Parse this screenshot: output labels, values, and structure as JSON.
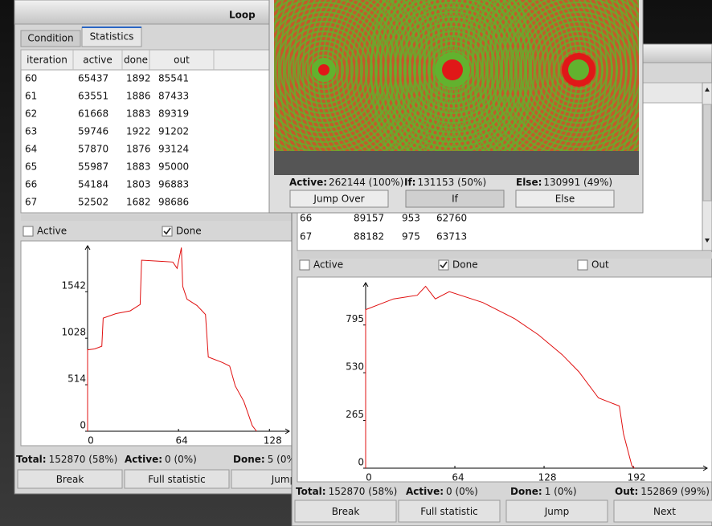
{
  "left_window": {
    "title": "Loop",
    "tabs": [
      "Condition",
      "Statistics"
    ],
    "table": {
      "header": [
        "iteration",
        "active",
        "done",
        "out"
      ],
      "rows": [
        [
          "60",
          "65437",
          "1892",
          "85541"
        ],
        [
          "61",
          "63551",
          "1886",
          "87433"
        ],
        [
          "62",
          "61668",
          "1883",
          "89319"
        ],
        [
          "63",
          "59746",
          "1922",
          "91202"
        ],
        [
          "64",
          "57870",
          "1876",
          "93124"
        ],
        [
          "65",
          "55987",
          "1883",
          "95000"
        ],
        [
          "66",
          "54184",
          "1803",
          "96883"
        ],
        [
          "67",
          "52502",
          "1682",
          "98686"
        ]
      ]
    },
    "checkboxes": [
      {
        "label": "Active",
        "checked": false
      },
      {
        "label": "Done",
        "checked": true
      }
    ],
    "chart": {
      "type": "line",
      "color": "#e01010",
      "x": [
        0,
        0,
        5,
        10,
        11,
        20,
        30,
        37,
        38,
        50,
        60,
        63,
        66,
        67,
        70,
        77,
        83,
        85,
        95,
        100,
        104,
        110,
        116,
        119
      ],
      "values": [
        0,
        900,
        910,
        940,
        1250,
        1300,
        1330,
        1400,
        1890,
        1880,
        1870,
        1800,
        2030,
        1600,
        1460,
        1390,
        1290,
        820,
        760,
        720,
        500,
        330,
        60,
        0
      ],
      "xlim": [
        0,
        142
      ],
      "ylim": [
        0,
        2050
      ],
      "xticks": [
        0,
        64,
        128
      ],
      "yticks": [
        0,
        514,
        1028,
        1542
      ]
    },
    "status": [
      {
        "label": "Total:",
        "value": "152870 (58%)"
      },
      {
        "label": "Active:",
        "value": "0 (0%)"
      },
      {
        "label": "Done:",
        "value": "5 (0%)"
      }
    ],
    "buttons": [
      {
        "label": "Break",
        "enabled": true
      },
      {
        "label": "Full statistic",
        "enabled": false
      },
      {
        "label": "Jump",
        "enabled": false
      }
    ]
  },
  "right_window": {
    "table": {
      "rows": [
        [
          "66",
          "89157",
          "953",
          "62760"
        ],
        [
          "67",
          "88182",
          "975",
          "63713"
        ]
      ]
    },
    "checkboxes": [
      {
        "label": "Active",
        "checked": false
      },
      {
        "label": "Done",
        "checked": true
      },
      {
        "label": "Out",
        "checked": false
      }
    ],
    "chart": {
      "type": "line",
      "color": "#e01010",
      "x": [
        0,
        0,
        20,
        37,
        43,
        50,
        60,
        84,
        107,
        124,
        141,
        153,
        167,
        182,
        185,
        191,
        193
      ],
      "values": [
        0,
        880,
        940,
        960,
        1010,
        940,
        980,
        920,
        830,
        740,
        630,
        535,
        390,
        345,
        190,
        13,
        0
      ],
      "xlim": [
        0,
        245
      ],
      "ylim": [
        0,
        1030
      ],
      "xticks": [
        0,
        64,
        128,
        192
      ],
      "yticks": [
        0,
        265,
        530,
        795
      ]
    },
    "status": [
      {
        "label": "Total:",
        "value": "152870 (58%)"
      },
      {
        "label": "Active:",
        "value": "0 (0%)"
      },
      {
        "label": "Done:",
        "value": "1 (0%)"
      },
      {
        "label": "Out:",
        "value": "152869 (99%)"
      }
    ],
    "buttons": [
      {
        "label": "Break",
        "enabled": true
      },
      {
        "label": "Full statistic",
        "enabled": false
      },
      {
        "label": "Jump",
        "enabled": false
      },
      {
        "label": "Next",
        "enabled": false
      }
    ]
  },
  "popup": {
    "stats": [
      {
        "label": "Active:",
        "value": "262144 (100%)"
      },
      {
        "label": "If:",
        "value": "131153 (50%)"
      },
      {
        "label": "Else:",
        "value": "130991 (49%)"
      }
    ],
    "buttons": [
      "Jump Over",
      "If",
      "Else"
    ]
  }
}
